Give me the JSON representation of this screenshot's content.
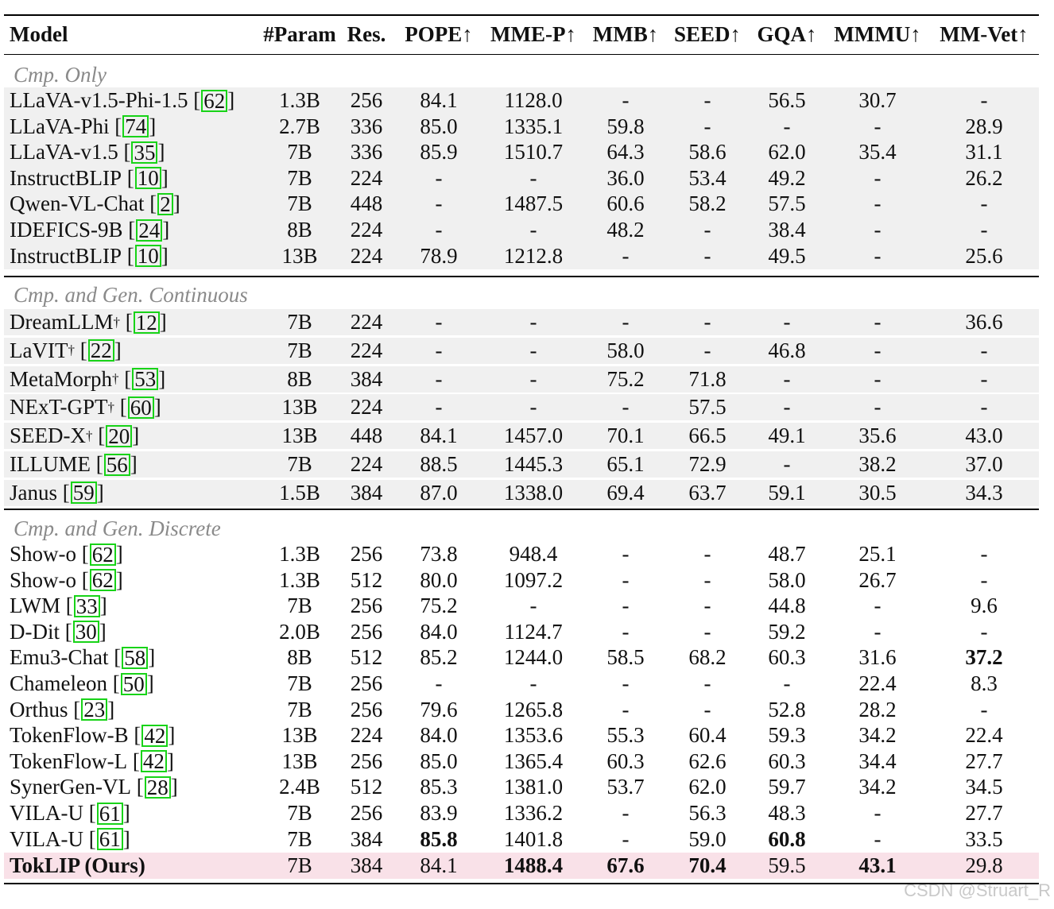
{
  "headers": [
    "Model",
    "#Param",
    "Res.",
    "POPE↑",
    "MME-P↑",
    "MMB↑",
    "SEED↑",
    "GQA↑",
    "MMMU↑",
    "MM-Vet↑"
  ],
  "sections": [
    {
      "title": "Cmp. Only",
      "rows": [
        {
          "name": "LLaVA-v1.5-Phi-1.5",
          "dagger": false,
          "ref": "62",
          "values": [
            "1.3B",
            "256",
            "84.1",
            "1128.0",
            "-",
            "-",
            "56.5",
            "30.7",
            "-"
          ],
          "bold": []
        },
        {
          "name": "LLaVA-Phi",
          "dagger": false,
          "ref": "74",
          "values": [
            "2.7B",
            "336",
            "85.0",
            "1335.1",
            "59.8",
            "-",
            "-",
            "-",
            "28.9"
          ],
          "bold": []
        },
        {
          "name": "LLaVA-v1.5",
          "dagger": false,
          "ref": "35",
          "values": [
            "7B",
            "336",
            "85.9",
            "1510.7",
            "64.3",
            "58.6",
            "62.0",
            "35.4",
            "31.1"
          ],
          "bold": []
        },
        {
          "name": "InstructBLIP",
          "dagger": false,
          "ref": "10",
          "values": [
            "7B",
            "224",
            "-",
            "-",
            "36.0",
            "53.4",
            "49.2",
            "-",
            "26.2"
          ],
          "bold": []
        },
        {
          "name": "Qwen-VL-Chat",
          "dagger": false,
          "ref": "2",
          "values": [
            "7B",
            "448",
            "-",
            "1487.5",
            "60.6",
            "58.2",
            "57.5",
            "-",
            "-"
          ],
          "bold": []
        },
        {
          "name": "IDEFICS-9B",
          "dagger": false,
          "ref": "24",
          "values": [
            "8B",
            "224",
            "-",
            "-",
            "48.2",
            "-",
            "38.4",
            "-",
            "-"
          ],
          "bold": []
        },
        {
          "name": "InstructBLIP",
          "dagger": false,
          "ref": "10",
          "values": [
            "13B",
            "224",
            "78.9",
            "1212.8",
            "-",
            "-",
            "49.5",
            "-",
            "25.6"
          ],
          "bold": []
        }
      ]
    },
    {
      "title": "Cmp. and Gen. Continuous",
      "rows": [
        {
          "name": "DreamLLM",
          "dagger": true,
          "ref": "12",
          "values": [
            "7B",
            "224",
            "-",
            "-",
            "-",
            "-",
            "-",
            "-",
            "36.6"
          ],
          "bold": []
        },
        {
          "name": "LaVIT",
          "dagger": true,
          "ref": "22",
          "values": [
            "7B",
            "224",
            "-",
            "-",
            "58.0",
            "-",
            "46.8",
            "-",
            "-"
          ],
          "bold": []
        },
        {
          "name": "MetaMorph",
          "dagger": true,
          "ref": "53",
          "values": [
            "8B",
            "384",
            "-",
            "-",
            "75.2",
            "71.8",
            "-",
            "-",
            "-"
          ],
          "bold": []
        },
        {
          "name": "NExT-GPT",
          "dagger": true,
          "ref": "60",
          "values": [
            "13B",
            "224",
            "-",
            "-",
            "-",
            "57.5",
            "-",
            "-",
            "-"
          ],
          "bold": []
        },
        {
          "name": "SEED-X",
          "dagger": true,
          "ref": "20",
          "values": [
            "13B",
            "448",
            "84.1",
            "1457.0",
            "70.1",
            "66.5",
            "49.1",
            "35.6",
            "43.0"
          ],
          "bold": []
        },
        {
          "name": "ILLUME",
          "dagger": false,
          "ref": "56",
          "values": [
            "7B",
            "224",
            "88.5",
            "1445.3",
            "65.1",
            "72.9",
            "-",
            "38.2",
            "37.0"
          ],
          "bold": []
        },
        {
          "name": "Janus",
          "dagger": false,
          "ref": "59",
          "values": [
            "1.5B",
            "384",
            "87.0",
            "1338.0",
            "69.4",
            "63.7",
            "59.1",
            "30.5",
            "34.3"
          ],
          "bold": []
        }
      ]
    },
    {
      "title": "Cmp. and Gen. Discrete",
      "rows": [
        {
          "name": "Show-o",
          "dagger": false,
          "ref": "62",
          "values": [
            "1.3B",
            "256",
            "73.8",
            "948.4",
            "-",
            "-",
            "48.7",
            "25.1",
            "-"
          ],
          "bold": []
        },
        {
          "name": "Show-o",
          "dagger": false,
          "ref": "62",
          "values": [
            "1.3B",
            "512",
            "80.0",
            "1097.2",
            "-",
            "-",
            "58.0",
            "26.7",
            "-"
          ],
          "bold": []
        },
        {
          "name": "LWM",
          "dagger": false,
          "ref": "33",
          "values": [
            "7B",
            "256",
            "75.2",
            "-",
            "-",
            "-",
            "44.8",
            "-",
            "9.6"
          ],
          "bold": []
        },
        {
          "name": "D-Dit",
          "dagger": false,
          "ref": "30",
          "values": [
            "2.0B",
            "256",
            "84.0",
            "1124.7",
            "-",
            "-",
            "59.2",
            "-",
            "-"
          ],
          "bold": []
        },
        {
          "name": "Emu3-Chat",
          "dagger": false,
          "ref": "58",
          "values": [
            "8B",
            "512",
            "85.2",
            "1244.0",
            "58.5",
            "68.2",
            "60.3",
            "31.6",
            "37.2"
          ],
          "bold": [
            8
          ]
        },
        {
          "name": "Chameleon",
          "dagger": false,
          "ref": "50",
          "values": [
            "7B",
            "256",
            "-",
            "-",
            "-",
            "-",
            "-",
            "22.4",
            "8.3"
          ],
          "bold": []
        },
        {
          "name": "Orthus",
          "dagger": false,
          "ref": "23",
          "values": [
            "7B",
            "256",
            "79.6",
            "1265.8",
            "-",
            "-",
            "52.8",
            "28.2",
            "-"
          ],
          "bold": []
        },
        {
          "name": "TokenFlow-B",
          "dagger": false,
          "ref": "42",
          "values": [
            "13B",
            "224",
            "84.0",
            "1353.6",
            "55.3",
            "60.4",
            "59.3",
            "34.2",
            "22.4"
          ],
          "bold": []
        },
        {
          "name": "TokenFlow-L",
          "dagger": false,
          "ref": "42",
          "values": [
            "13B",
            "256",
            "85.0",
            "1365.4",
            "60.3",
            "62.6",
            "60.3",
            "34.4",
            "27.7"
          ],
          "bold": []
        },
        {
          "name": "SynerGen-VL",
          "dagger": false,
          "ref": "28",
          "values": [
            "2.4B",
            "512",
            "85.3",
            "1381.0",
            "53.7",
            "62.0",
            "59.7",
            "34.2",
            "34.5"
          ],
          "bold": []
        },
        {
          "name": "VILA-U",
          "dagger": false,
          "ref": "61",
          "values": [
            "7B",
            "256",
            "83.9",
            "1336.2",
            "-",
            "56.3",
            "48.3",
            "-",
            "27.7"
          ],
          "bold": []
        },
        {
          "name": "VILA-U",
          "dagger": false,
          "ref": "61",
          "values": [
            "7B",
            "384",
            "85.8",
            "1401.8",
            "-",
            "59.0",
            "60.8",
            "-",
            "33.5"
          ],
          "bold": [
            2,
            6
          ]
        }
      ]
    }
  ],
  "ours": {
    "name": "TokLIP (Ours)",
    "values": [
      "7B",
      "384",
      "84.1",
      "1488.4",
      "67.6",
      "70.4",
      "59.5",
      "43.1",
      "29.8"
    ],
    "bold": [
      3,
      4,
      5,
      7
    ]
  },
  "watermark": "CSDN @Struart_R"
}
